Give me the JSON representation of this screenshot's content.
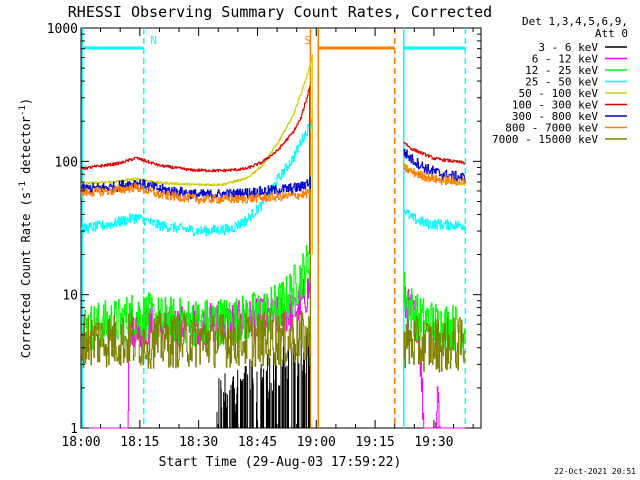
{
  "chart_data": {
    "type": "line",
    "title": "RHESSI Observing Summary Count Rates, Corrected",
    "xlabel": "Start Time (29-Aug-03 17:59:22)",
    "ylabel_main": "Corrected Count Rate (s",
    "ylabel_sup1": "-1",
    "ylabel_mid": " detector",
    "ylabel_sup2": "-1",
    "ylabel_end": ")",
    "yscale": "log",
    "ylim": [
      1,
      1000
    ],
    "xlim_minutes": [
      0,
      102
    ],
    "x_ticks": [
      {
        "m": 0,
        "label": "18:00"
      },
      {
        "m": 15,
        "label": "18:15"
      },
      {
        "m": 30,
        "label": "18:30"
      },
      {
        "m": 45,
        "label": "18:45"
      },
      {
        "m": 60,
        "label": "19:00"
      },
      {
        "m": 75,
        "label": "19:15"
      },
      {
        "m": 90,
        "label": "19:30"
      }
    ],
    "y_ticks": [
      {
        "v": 1,
        "label": "1"
      },
      {
        "v": 10,
        "label": "10"
      },
      {
        "v": 100,
        "label": "100"
      },
      {
        "v": 1000,
        "label": "1000"
      }
    ],
    "legend_header": [
      "Det 1,3,4,5,6,9,",
      "Att 0"
    ],
    "legend_placement": "right",
    "timestamp": "22-Oct-2021 20:51",
    "flag_labels": [
      {
        "text": "N",
        "m": 18.5
      },
      {
        "text": "S",
        "m": 57.8
      }
    ],
    "flag_bars": [
      {
        "name": "night",
        "color": "#00ffff",
        "m_start": 0.3,
        "m_end": 16.0,
        "y": 1000
      },
      {
        "name": "night",
        "color": "#00ffff",
        "m_start": 82.3,
        "m_end": 98.0,
        "y": 1000
      },
      {
        "name": "saa",
        "color": "#ff8000",
        "m_start": 60.5,
        "m_end": 80.0,
        "y": 1000
      }
    ],
    "flag_lines": [
      {
        "color": "#00ffff",
        "m": 0.3,
        "style": "solid"
      },
      {
        "color": "#00ffff",
        "m": 16.0,
        "style": "dashed"
      },
      {
        "color": "#ff8000",
        "m": 58.5,
        "style": "solid"
      },
      {
        "color": "#ff8000",
        "m": 60.5,
        "style": "solid"
      },
      {
        "color": "#ff8000",
        "m": 80.0,
        "style": "dashed"
      },
      {
        "color": "#00ffff",
        "m": 82.3,
        "style": "solid"
      },
      {
        "color": "#00ffff",
        "m": 98.0,
        "style": "dashed"
      }
    ],
    "series": [
      {
        "name": "3 - 6 keV",
        "color": "#000000",
        "seg1": [
          [
            0,
            0.5
          ],
          [
            34,
            0.5
          ],
          [
            35,
            1.8
          ],
          [
            40,
            2.2
          ],
          [
            45,
            2.6
          ],
          [
            50,
            2.9
          ],
          [
            54,
            3.3
          ],
          [
            57,
            3.8
          ],
          [
            58.5,
            5
          ]
        ],
        "seg2": [],
        "noise": 0.7,
        "kind": "spiky"
      },
      {
        "name": "6 - 12 keV",
        "color": "#ff00ff",
        "seg1": [
          [
            0,
            0.5
          ],
          [
            11.8,
            0.5
          ],
          [
            12.2,
            5.8
          ],
          [
            20,
            5.8
          ],
          [
            30,
            6
          ],
          [
            40,
            6.3
          ],
          [
            50,
            6.8
          ],
          [
            54,
            7.5
          ],
          [
            57,
            9.5
          ],
          [
            58.5,
            12
          ]
        ],
        "seg2": [
          [
            82.3,
            8.5
          ],
          [
            84,
            7.5
          ],
          [
            86,
            6
          ],
          [
            88,
            0.5
          ],
          [
            90,
            0.5
          ],
          [
            91,
            1.8
          ],
          [
            92,
            0.5
          ],
          [
            98,
            0.5
          ]
        ],
        "noise": 0.12,
        "kind": "noisy"
      },
      {
        "name": "12 - 25 keV",
        "color": "#00ff00",
        "seg1": [
          [
            0,
            5.6
          ],
          [
            10,
            6.3
          ],
          [
            14,
            7.2
          ],
          [
            20,
            6.5
          ],
          [
            30,
            6.2
          ],
          [
            40,
            6.5
          ],
          [
            48,
            7.5
          ],
          [
            52,
            9
          ],
          [
            55,
            12
          ],
          [
            57,
            15
          ],
          [
            58.5,
            19
          ]
        ],
        "seg2": [
          [
            82.3,
            10.5
          ],
          [
            84,
            8
          ],
          [
            86,
            6.6
          ],
          [
            90,
            6
          ],
          [
            98,
            5.5
          ]
        ],
        "noise": 0.14,
        "kind": "noisy"
      },
      {
        "name": "25 - 50 keV",
        "color": "#00ffff",
        "seg1": [
          [
            0,
            31
          ],
          [
            8,
            34
          ],
          [
            14,
            38
          ],
          [
            20,
            33
          ],
          [
            30,
            30
          ],
          [
            38,
            31
          ],
          [
            42,
            36
          ],
          [
            46,
            47
          ],
          [
            50,
            72
          ],
          [
            54,
            105
          ],
          [
            56,
            140
          ],
          [
            58,
            180
          ],
          [
            59,
            200
          ]
        ],
        "seg2": [
          [
            82.3,
            44
          ],
          [
            84,
            38
          ],
          [
            88,
            34
          ],
          [
            98,
            33
          ]
        ],
        "noise": 0.03,
        "kind": "noisy"
      },
      {
        "name": "50 - 100 keV",
        "color": "#cccc00",
        "seg1": [
          [
            0,
            68
          ],
          [
            8,
            70
          ],
          [
            14,
            74
          ],
          [
            20,
            69
          ],
          [
            28,
            67
          ],
          [
            36,
            67
          ],
          [
            42,
            74
          ],
          [
            46,
            92
          ],
          [
            50,
            135
          ],
          [
            54,
            220
          ],
          [
            56,
            320
          ],
          [
            58,
            480
          ],
          [
            59,
            630
          ]
        ],
        "seg2": [
          [
            82.3,
            95
          ],
          [
            84,
            85
          ],
          [
            88,
            76
          ],
          [
            92,
            71
          ],
          [
            98,
            67
          ]
        ],
        "noise": 0.02,
        "kind": "line"
      },
      {
        "name": "100 - 300 keV",
        "color": "#dd0000",
        "seg1": [
          [
            0,
            88
          ],
          [
            10,
            97
          ],
          [
            14,
            106
          ],
          [
            20,
            93
          ],
          [
            28,
            86
          ],
          [
            36,
            85
          ],
          [
            42,
            88
          ],
          [
            46,
            98
          ],
          [
            50,
            120
          ],
          [
            54,
            165
          ],
          [
            56,
            210
          ],
          [
            57.8,
            320
          ],
          [
            58.3,
            370
          ]
        ],
        "seg2": [
          [
            82.3,
            140
          ],
          [
            84,
            125
          ],
          [
            86,
            118
          ],
          [
            90,
            105
          ],
          [
            98,
            97
          ]
        ],
        "noise": 0.025,
        "kind": "line"
      },
      {
        "name": "300 - 800 keV",
        "color": "#0000cc",
        "seg1": [
          [
            0,
            62
          ],
          [
            8,
            64
          ],
          [
            14,
            69
          ],
          [
            20,
            62
          ],
          [
            30,
            56
          ],
          [
            40,
            57
          ],
          [
            50,
            61
          ],
          [
            56,
            64
          ],
          [
            58.5,
            72
          ]
        ],
        "seg2": [
          [
            82.3,
            118
          ],
          [
            84,
            105
          ],
          [
            88,
            88
          ],
          [
            92,
            80
          ],
          [
            98,
            75
          ]
        ],
        "noise": 0.03,
        "kind": "noisy"
      },
      {
        "name": "800 - 7000 keV",
        "color": "#ff8000",
        "seg1": [
          [
            0,
            58
          ],
          [
            8,
            60
          ],
          [
            14,
            64
          ],
          [
            20,
            56
          ],
          [
            30,
            52
          ],
          [
            40,
            52
          ],
          [
            50,
            54
          ],
          [
            56,
            56
          ],
          [
            58.5,
            58
          ]
        ],
        "seg2": [
          [
            82.3,
            90
          ],
          [
            84,
            84
          ],
          [
            88,
            76
          ],
          [
            92,
            72
          ],
          [
            98,
            70
          ]
        ],
        "noise": 0.025,
        "kind": "noisy"
      },
      {
        "name": "7000 - 15000 keV",
        "color": "#808000",
        "seg1": [
          [
            0,
            4.6
          ],
          [
            20,
            4.5
          ],
          [
            40,
            4.6
          ],
          [
            58.5,
            4.7
          ]
        ],
        "seg2": [
          [
            82.3,
            4.3
          ],
          [
            98,
            4.2
          ]
        ],
        "noise": 0.16,
        "kind": "noisy"
      }
    ]
  }
}
